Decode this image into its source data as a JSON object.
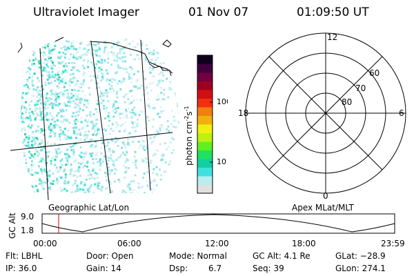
{
  "header": {
    "instrument": "Ultraviolet Imager",
    "date": "01 Nov 07",
    "time": "01:09:50 UT"
  },
  "colorbar": {
    "label_main": "photon cm",
    "label_sup1": "-2",
    "label_mid": "s",
    "label_sup2": "-1",
    "tick_100": "100",
    "tick_10": "10",
    "colors": [
      "#e0e0e0",
      "#b8eef0",
      "#40e0e0",
      "#10d0a0",
      "#20e060",
      "#60f020",
      "#c0f010",
      "#f0f010",
      "#f0b010",
      "#f08010",
      "#f03010",
      "#d01010",
      "#a00020",
      "#700040",
      "#400040",
      "#100020"
    ]
  },
  "polar_plot": {
    "mlt_top": "12",
    "mlt_left": "18",
    "mlt_right": "6",
    "mlt_bottom": "0",
    "lat_60": "60",
    "lat_70": "70",
    "lat_80": "80"
  },
  "labels": {
    "geo": "Geographic Lat/Lon",
    "apex": "Apex MLat/MLT"
  },
  "altitude_plot": {
    "axis_label": "GC Alt",
    "y_max": "9.0",
    "y_min": "1.8",
    "t0": "00:00",
    "t1": "06:00",
    "t2": "12:00",
    "t3": "18:00",
    "t4": "23:59"
  },
  "footer": {
    "flt": "Flt: LBHL",
    "ip": "IP: 36.0",
    "door": "Door: Open",
    "gain": "Gain: 14",
    "mode": "Mode: Normal",
    "dsp_label": "Dsp:",
    "dsp_value": "6.7",
    "gc_alt": "GC Alt: 4.1 Re",
    "seq": "Seq: 39",
    "glat": "GLat: −28.9",
    "glon": "GLon: 274.1"
  }
}
